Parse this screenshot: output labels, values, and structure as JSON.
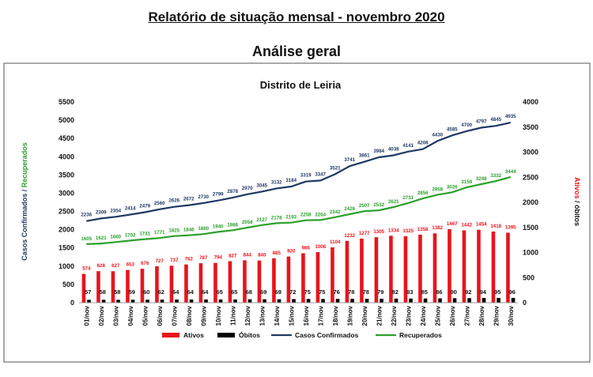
{
  "page": {
    "title": "Relatório de situação mensal - novembro 2020",
    "subtitle": "Análise geral"
  },
  "colors": {
    "ativos": "#e8141c",
    "obitos": "#000000",
    "confirmados": "#1f3864",
    "recuperados": "#2ca02c"
  },
  "chart_data": {
    "type": "bar",
    "title": "Distrito de Leiria",
    "ylabel_left_part1": "Casos Confirmados",
    "ylabel_left_sep": " / ",
    "ylabel_left_part2": "Recuperados",
    "ylabel_right_part1": "Ativos",
    "ylabel_right_sep": " / ",
    "ylabel_right_part2": "óbitos",
    "ylim_left": [
      0,
      5500
    ],
    "yticks_left": [
      0,
      500,
      1000,
      1500,
      2000,
      2500,
      3000,
      3500,
      4000,
      4500,
      5000,
      5500
    ],
    "ylim_right": [
      0,
      4000
    ],
    "yticks_right": [
      0,
      500,
      1000,
      1500,
      2000,
      2500,
      3000,
      3500,
      4000
    ],
    "legend_position": "bottom",
    "grid": false,
    "categories": [
      "01/nov",
      "02/nov",
      "03/nov",
      "04/nov",
      "05/nov",
      "06/nov",
      "07/nov",
      "08/nov",
      "09/nov",
      "10/nov",
      "11/nov",
      "12/nov",
      "13/nov",
      "14/nov",
      "15/nov",
      "16/nov",
      "17/nov",
      "18/nov",
      "19/nov",
      "20/nov",
      "21/nov",
      "22/nov",
      "23/nov",
      "24/nov",
      "25/nov",
      "26/nov",
      "27/nov",
      "28/nov",
      "29/nov",
      "30/nov"
    ],
    "series": [
      {
        "name": "Ativos",
        "type": "bar",
        "axis": "right",
        "values": [
          574,
          628,
          627,
          653,
          676,
          727,
          737,
          762,
          787,
          794,
          827,
          844,
          840,
          885,
          920,
          986,
          1008,
          1104,
          1232,
          1277,
          1305,
          1334,
          1325,
          1356,
          1382,
          1467,
          1442,
          1454,
          1418,
          1395
        ]
      },
      {
        "name": "Óbitos",
        "type": "bar",
        "axis": "right",
        "values": [
          57,
          58,
          58,
          59,
          60,
          62,
          64,
          64,
          64,
          65,
          65,
          68,
          69,
          69,
          72,
          75,
          75,
          76,
          78,
          78,
          79,
          82,
          83,
          85,
          86,
          90,
          92,
          94,
          95,
          96
        ]
      },
      {
        "name": "Casos Confirmados",
        "type": "line",
        "axis": "left",
        "values": [
          2236,
          2309,
          2354,
          2414,
          2479,
          2560,
          2626,
          2672,
          2730,
          2799,
          2878,
          2970,
          3045,
          3132,
          3184,
          3319,
          3347,
          3521,
          3741,
          3861,
          3984,
          4038,
          4141,
          4208,
          4430,
          4585,
          4700,
          4797,
          4845,
          4935
        ]
      },
      {
        "name": "Recuperados",
        "type": "line",
        "axis": "left",
        "values": [
          1605,
          1621,
          1660,
          1702,
          1741,
          1771,
          1825,
          1846,
          1880,
          1940,
          1986,
          2058,
          2127,
          2178,
          2193,
          2258,
          2264,
          2342,
          2426,
          2507,
          2532,
          2621,
          2731,
          2856,
          2958,
          3026,
          3159,
          3248,
          3332,
          3444
        ]
      }
    ]
  }
}
